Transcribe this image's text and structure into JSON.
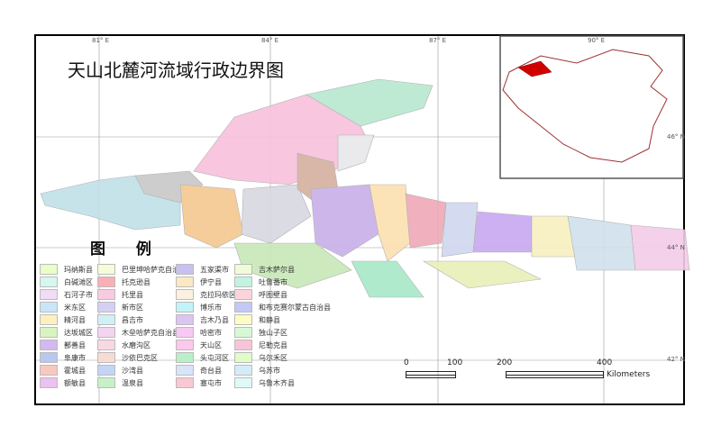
{
  "title": "天山北麓河流域行政边界图",
  "legend_title": "图  例",
  "grid": {
    "lon": [
      "81° E",
      "84° E",
      "87° E",
      "90° E"
    ],
    "lat": [
      "46° N",
      "44° N",
      "42° N"
    ]
  },
  "scale": {
    "ticks": [
      "0",
      "100",
      "200",
      "400"
    ],
    "unit": "Kilometers"
  },
  "legend": [
    {
      "label": "玛纳斯县",
      "color": "#eaffc8"
    },
    {
      "label": "白碱滩区",
      "color": "#d6f7ee"
    },
    {
      "label": "石河子市",
      "color": "#f0dcf4"
    },
    {
      "label": "米东区",
      "color": "#c8e6f8"
    },
    {
      "label": "精河县",
      "color": "#fdf0c0"
    },
    {
      "label": "达坂城区",
      "color": "#d8f5c0"
    },
    {
      "label": "鄯善县",
      "color": "#d4b8f0"
    },
    {
      "label": "阜康市",
      "color": "#b8c8f0"
    },
    {
      "label": "霍城县",
      "color": "#f8c8c0"
    },
    {
      "label": "额敏县",
      "color": "#ecc0f0"
    },
    {
      "label": "巴里坤哈萨克自治县",
      "color": "#f4fcd8"
    },
    {
      "label": "托克逊县",
      "color": "#f8b0b4"
    },
    {
      "label": "托里县",
      "color": "#f8cce0"
    },
    {
      "label": "新市区",
      "color": "#d4d0f4"
    },
    {
      "label": "昌吉市",
      "color": "#d0f0f8"
    },
    {
      "label": "木垒哈萨克自治县",
      "color": "#f4d4f0"
    },
    {
      "label": "水磨沟区",
      "color": "#f8d8e4"
    },
    {
      "label": "沙依巴克区",
      "color": "#f8dcd4"
    },
    {
      "label": "沙湾县",
      "color": "#c4d4f4"
    },
    {
      "label": "温泉县",
      "color": "#c8f0c8"
    },
    {
      "label": "五家渠市",
      "color": "#c8c0f0"
    },
    {
      "label": "伊宁县",
      "color": "#fde8c4"
    },
    {
      "label": "克拉玛依区",
      "color": "#fcf0e0"
    },
    {
      "label": "博乐市",
      "color": "#c0f4f8"
    },
    {
      "label": "吉木乃县",
      "color": "#dcc4f4"
    },
    {
      "label": "哈密市",
      "color": "#f8c8f4"
    },
    {
      "label": "天山区",
      "color": "#fcc8ec"
    },
    {
      "label": "头屯河区",
      "color": "#b8f0c8"
    },
    {
      "label": "奇台县",
      "color": "#d8e4f8"
    },
    {
      "label": "塞屯市",
      "color": "#f8c8d4"
    },
    {
      "label": "吉木萨尔县",
      "color": "#eefcd8"
    },
    {
      "label": "吐鲁番市",
      "color": "#c0f4e0"
    },
    {
      "label": "呼图壁县",
      "color": "#fcd4dc"
    },
    {
      "label": "和布克赛尔蒙古自治县",
      "color": "#c4c8f4"
    },
    {
      "label": "和静县",
      "color": "#fcfcc4"
    },
    {
      "label": "独山子区",
      "color": "#d8f8d4"
    },
    {
      "label": "尼勒克县",
      "color": "#f8c4d8"
    },
    {
      "label": "乌尔禾区",
      "color": "#e0fcc8"
    },
    {
      "label": "乌苏市",
      "color": "#d4ecf8"
    },
    {
      "label": "乌鲁木齐县",
      "color": "#e0f8f8"
    }
  ]
}
